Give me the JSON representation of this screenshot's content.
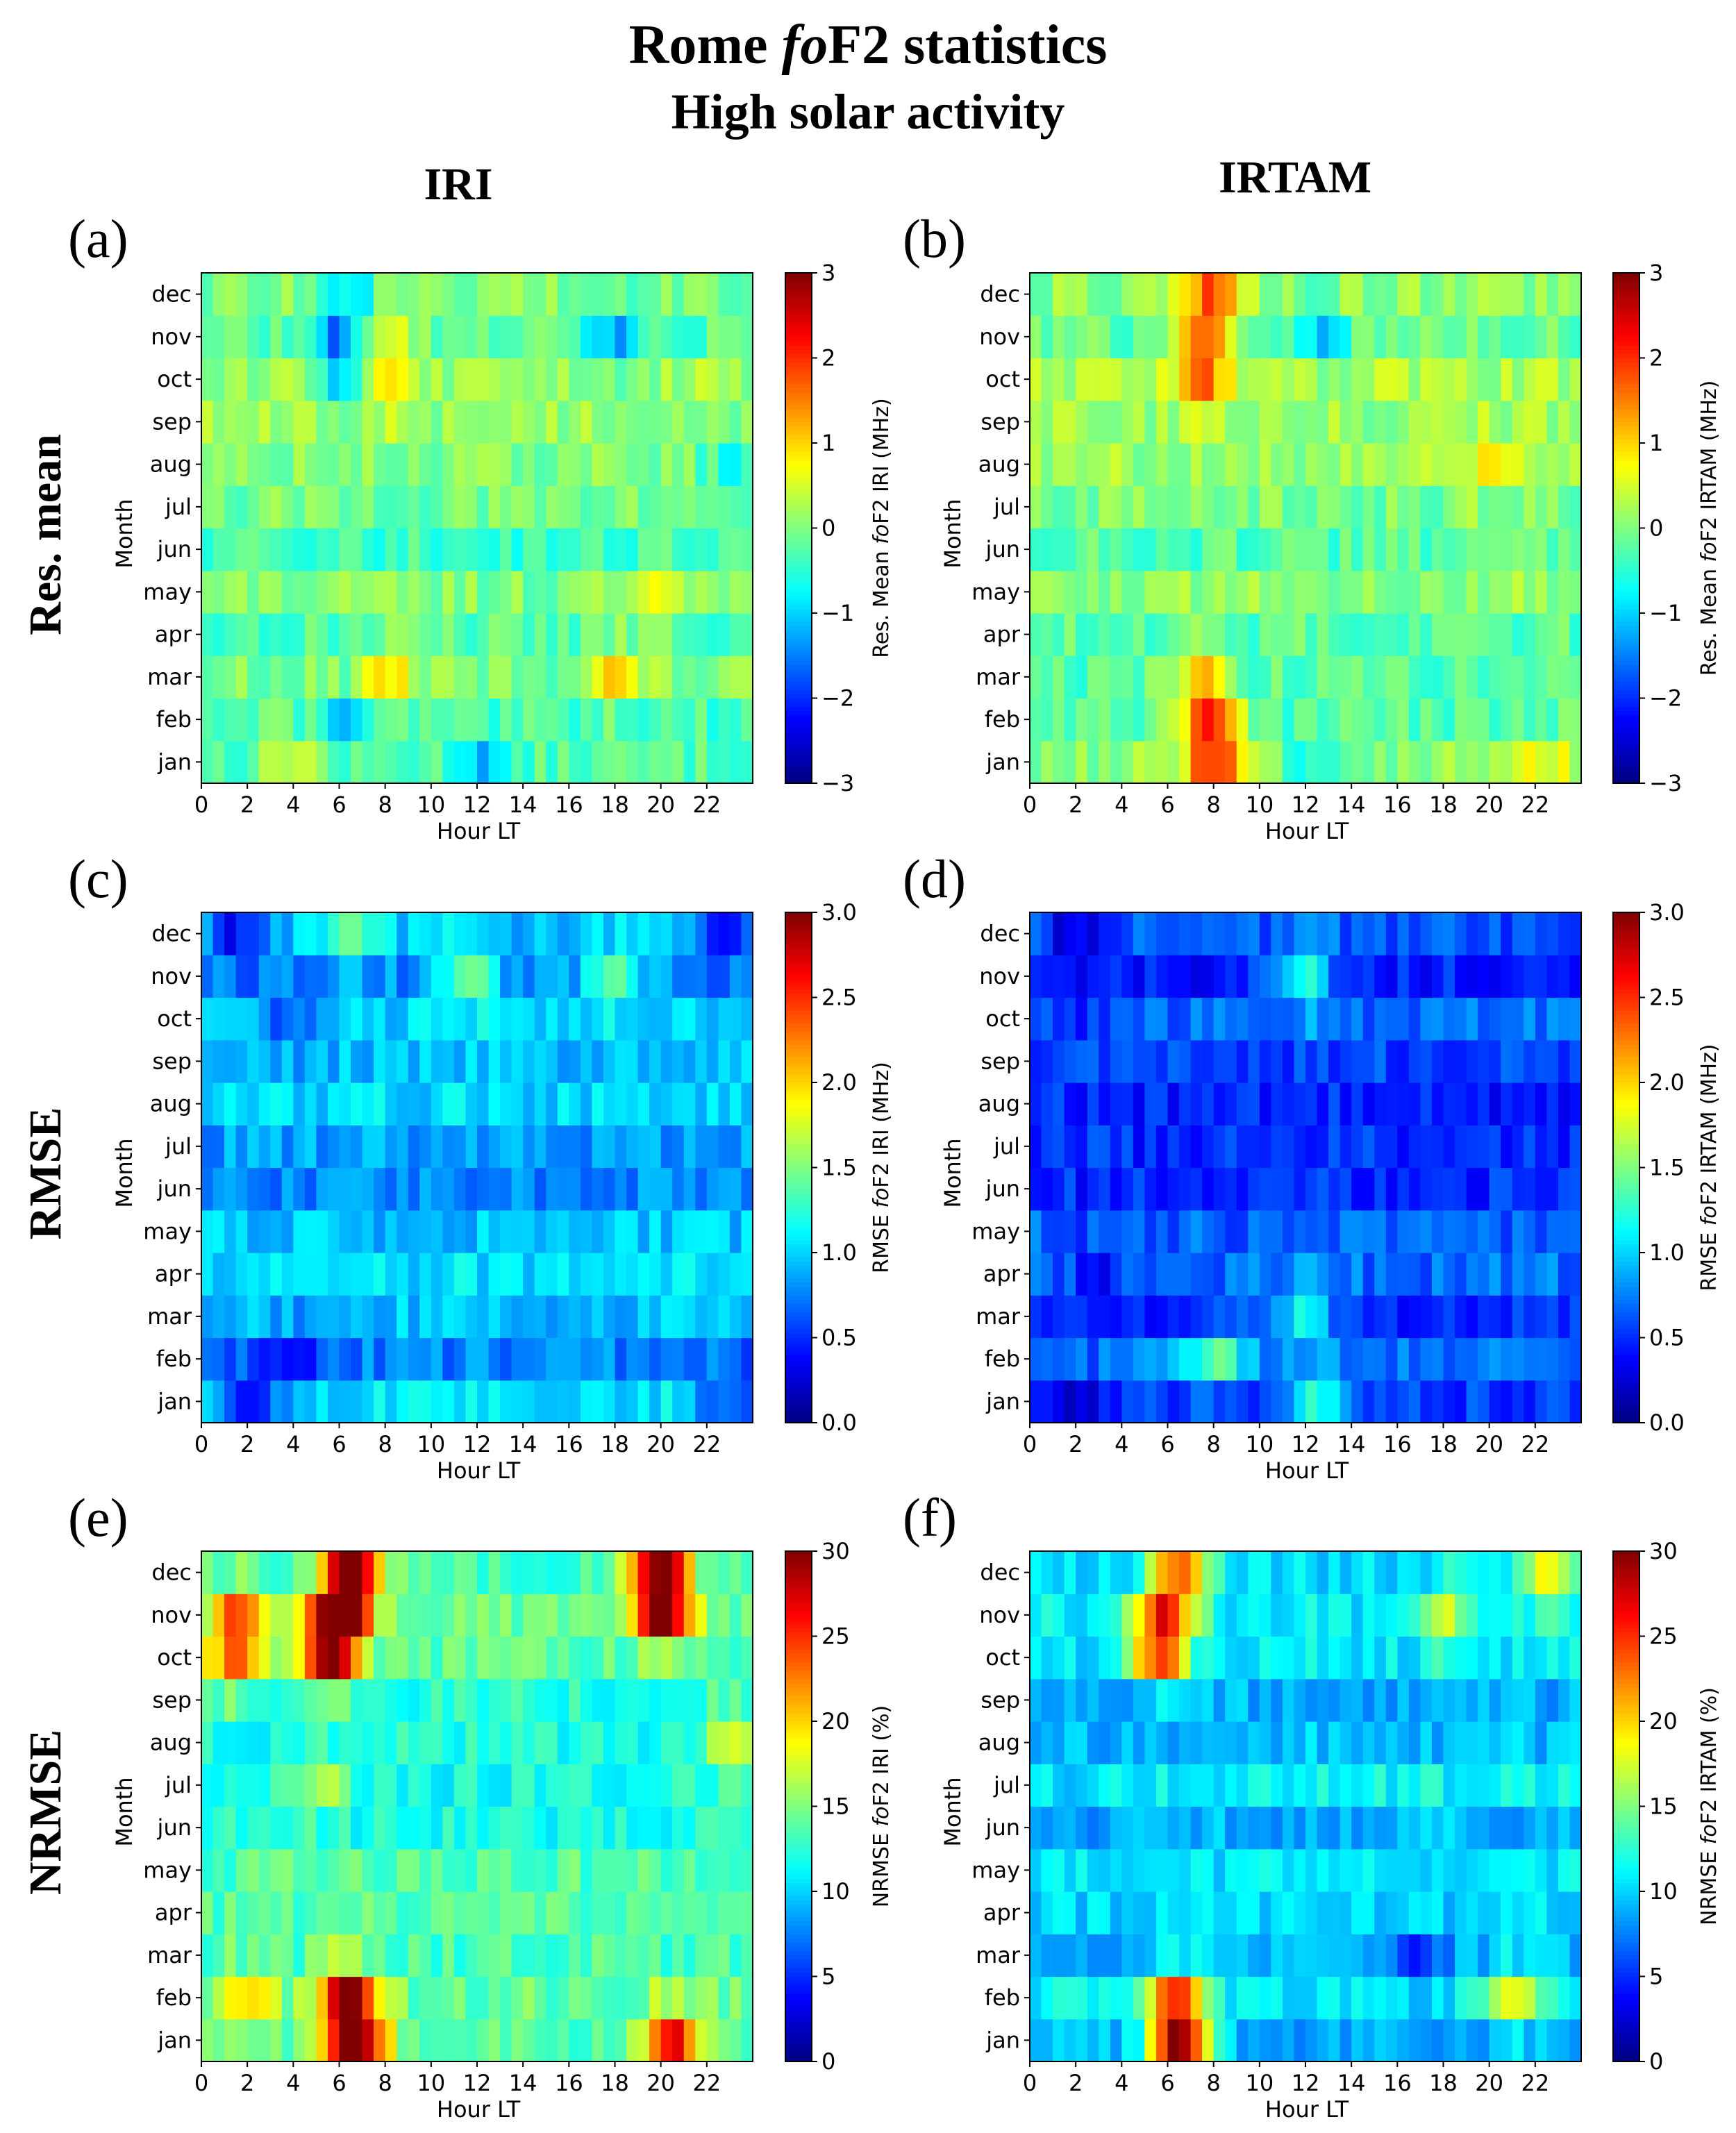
{
  "title": {
    "line1_prefix": "Rome ",
    "line1_italic": "fo",
    "line1_suffix": "F2 statistics",
    "line2": "High solar activity"
  },
  "column_headers": [
    "IRI",
    "IRTAM"
  ],
  "row_headers": [
    "Res. mean",
    "RMSE",
    "NRMSE"
  ],
  "chart_data": [
    {
      "type": "heatmap",
      "panel": "(a)",
      "model": "IRI",
      "metric": "Res. mean",
      "xlabel": "Hour LT",
      "ylabel": "Month",
      "x_ticks": [
        "0",
        "2",
        "4",
        "6",
        "8",
        "10",
        "12",
        "14",
        "16",
        "18",
        "20",
        "22"
      ],
      "y_categories": [
        "jan",
        "feb",
        "mar",
        "apr",
        "may",
        "jun",
        "jul",
        "aug",
        "sep",
        "oct",
        "nov",
        "dec"
      ],
      "xlim": [
        0,
        24
      ],
      "colorbar_range": [
        -3,
        3
      ],
      "colorbar_ticks": [
        "−3",
        "−2",
        "−1",
        "0",
        "1",
        "2",
        "3"
      ],
      "colorbar_label_prefix": "Res. Mean ",
      "colorbar_label_italic": "fo",
      "colorbar_label_suffix": "F2 IRI (MHz)",
      "hotspots": [
        {
          "month": "mar",
          "hour": 8,
          "value": 0.9
        },
        {
          "month": "mar",
          "hour": 18,
          "value": 0.9
        },
        {
          "month": "may",
          "hour": 20,
          "value": 0.8
        },
        {
          "month": "nov",
          "hour": 8,
          "value": 0.8
        },
        {
          "month": "oct",
          "hour": 8,
          "value": 0.7
        },
        {
          "month": "jan",
          "hour": 4,
          "value": 0.7
        },
        {
          "month": "nov",
          "hour": 6,
          "value": -1.2
        },
        {
          "month": "oct",
          "hour": 6,
          "value": -1.1
        },
        {
          "month": "nov",
          "hour": 18,
          "value": -1.1
        },
        {
          "month": "dec",
          "hour": 6.5,
          "value": -0.9
        },
        {
          "month": "jan",
          "hour": 12.5,
          "value": -0.9
        },
        {
          "month": "feb",
          "hour": 6.5,
          "value": -0.8
        },
        {
          "month": "aug",
          "hour": 23,
          "value": -0.6
        }
      ],
      "base": -0.1
    },
    {
      "type": "heatmap",
      "panel": "(b)",
      "model": "IRTAM",
      "metric": "Res. mean",
      "xlabel": "Hour LT",
      "ylabel": "Month",
      "x_ticks": [
        "0",
        "2",
        "4",
        "6",
        "8",
        "10",
        "12",
        "14",
        "16",
        "18",
        "20",
        "22"
      ],
      "y_categories": [
        "jan",
        "feb",
        "mar",
        "apr",
        "may",
        "jun",
        "jul",
        "aug",
        "sep",
        "oct",
        "nov",
        "dec"
      ],
      "xlim": [
        0,
        24
      ],
      "colorbar_range": [
        -3,
        3
      ],
      "colorbar_ticks": [
        "−3",
        "−2",
        "−1",
        "0",
        "1",
        "2",
        "3"
      ],
      "colorbar_label_prefix": "Res. Mean ",
      "colorbar_label_italic": "fo",
      "colorbar_label_suffix": "F2 IRTAM (MHz)",
      "hotspots": [
        {
          "month": "dec",
          "hour": 8,
          "value": 1.4
        },
        {
          "month": "nov",
          "hour": 7.5,
          "value": 1.6
        },
        {
          "month": "jan",
          "hour": 8,
          "value": 1.6
        },
        {
          "month": "feb",
          "hour": 7.8,
          "value": 1.7
        },
        {
          "month": "oct",
          "hour": 7.5,
          "value": 1.0
        },
        {
          "month": "mar",
          "hour": 7.3,
          "value": 1.0
        },
        {
          "month": "aug",
          "hour": 20,
          "value": 0.7
        },
        {
          "month": "jan",
          "hour": 22.5,
          "value": 0.6
        },
        {
          "month": "nov",
          "hour": 12.5,
          "value": -0.8
        },
        {
          "month": "jan",
          "hour": 12,
          "value": -0.6
        }
      ],
      "base": 0.0
    },
    {
      "type": "heatmap",
      "panel": "(c)",
      "model": "IRI",
      "metric": "RMSE",
      "xlabel": "Hour LT",
      "ylabel": "Month",
      "x_ticks": [
        "0",
        "2",
        "4",
        "6",
        "8",
        "10",
        "12",
        "14",
        "16",
        "18",
        "20",
        "22"
      ],
      "y_categories": [
        "jan",
        "feb",
        "mar",
        "apr",
        "may",
        "jun",
        "jul",
        "aug",
        "sep",
        "oct",
        "nov",
        "dec"
      ],
      "xlim": [
        0,
        24
      ],
      "colorbar_range": [
        0,
        3
      ],
      "colorbar_ticks": [
        "0.0",
        "0.5",
        "1.0",
        "1.5",
        "2.0",
        "2.5",
        "3.0"
      ],
      "colorbar_label_prefix": "RMSE ",
      "colorbar_label_italic": "fo",
      "colorbar_label_suffix": "F2 IRI (MHz)",
      "hotspots": [
        {
          "month": "nov",
          "hour": 11.5,
          "value": 1.6
        },
        {
          "month": "nov",
          "hour": 18,
          "value": 1.5
        },
        {
          "month": "dec",
          "hour": 6.5,
          "value": 1.4
        },
        {
          "month": "jan",
          "hour": 2,
          "value": 0.3
        },
        {
          "month": "dec",
          "hour": 1.5,
          "value": 0.4
        },
        {
          "month": "feb",
          "hour": 4,
          "value": 0.4
        },
        {
          "month": "dec",
          "hour": 23,
          "value": 0.4
        },
        {
          "month": "jan",
          "hour": 23,
          "value": 0.4
        },
        {
          "month": "oct",
          "hour": 4,
          "value": 0.5
        }
      ],
      "base": 0.9
    },
    {
      "type": "heatmap",
      "panel": "(d)",
      "model": "IRTAM",
      "metric": "RMSE",
      "xlabel": "Hour LT",
      "ylabel": "Month",
      "x_ticks": [
        "0",
        "2",
        "4",
        "6",
        "8",
        "10",
        "12",
        "14",
        "16",
        "18",
        "20",
        "22"
      ],
      "y_categories": [
        "jan",
        "feb",
        "mar",
        "apr",
        "may",
        "jun",
        "jul",
        "aug",
        "sep",
        "oct",
        "nov",
        "dec"
      ],
      "xlim": [
        0,
        24
      ],
      "colorbar_range": [
        0,
        3
      ],
      "colorbar_ticks": [
        "0.0",
        "0.5",
        "1.0",
        "1.5",
        "2.0",
        "2.5",
        "3.0"
      ],
      "colorbar_label_prefix": "RMSE ",
      "colorbar_label_italic": "fo",
      "colorbar_label_suffix": "F2 IRTAM (MHz)",
      "hotspots": [
        {
          "month": "nov",
          "hour": 12,
          "value": 1.3
        },
        {
          "month": "mar",
          "hour": 12,
          "value": 1.2
        },
        {
          "month": "feb",
          "hour": 8,
          "value": 1.3
        },
        {
          "month": "jan",
          "hour": 12.5,
          "value": 1.2
        },
        {
          "month": "dec",
          "hour": 2,
          "value": 0.2
        },
        {
          "month": "jan",
          "hour": 2,
          "value": 0.2
        },
        {
          "month": "apr",
          "hour": 3,
          "value": 0.3
        },
        {
          "month": "oct",
          "hour": 2,
          "value": 0.3
        }
      ],
      "base": 0.6
    },
    {
      "type": "heatmap",
      "panel": "(e)",
      "model": "IRI",
      "metric": "NRMSE",
      "xlabel": "Hour LT",
      "ylabel": "Month",
      "x_ticks": [
        "0",
        "2",
        "4",
        "6",
        "8",
        "10",
        "12",
        "14",
        "16",
        "18",
        "20",
        "22"
      ],
      "y_categories": [
        "jan",
        "feb",
        "mar",
        "apr",
        "may",
        "jun",
        "jul",
        "aug",
        "sep",
        "oct",
        "nov",
        "dec"
      ],
      "xlim": [
        0,
        24
      ],
      "colorbar_range": [
        0,
        30
      ],
      "colorbar_ticks": [
        "0",
        "5",
        "10",
        "15",
        "20",
        "25",
        "30"
      ],
      "colorbar_label_prefix": "NRMSE ",
      "colorbar_label_italic": "fo",
      "colorbar_label_suffix": "F2 IRI (%)",
      "hotspots": [
        {
          "month": "dec",
          "hour": 6.5,
          "value": 29
        },
        {
          "month": "nov",
          "hour": 6,
          "value": 29
        },
        {
          "month": "oct",
          "hour": 5.5,
          "value": 28
        },
        {
          "month": "jan",
          "hour": 6.8,
          "value": 29
        },
        {
          "month": "feb",
          "hour": 6.3,
          "value": 27
        },
        {
          "month": "dec",
          "hour": 20,
          "value": 29
        },
        {
          "month": "nov",
          "hour": 20,
          "value": 27
        },
        {
          "month": "jan",
          "hour": 20.5,
          "value": 26
        },
        {
          "month": "oct",
          "hour": 1.5,
          "value": 22
        },
        {
          "month": "nov",
          "hour": 1.5,
          "value": 21
        },
        {
          "month": "aug",
          "hour": 23,
          "value": 19
        },
        {
          "month": "feb",
          "hour": 2,
          "value": 19
        },
        {
          "month": "jul",
          "hour": 5,
          "value": 18
        }
      ],
      "base": 13
    },
    {
      "type": "heatmap",
      "panel": "(f)",
      "model": "IRTAM",
      "metric": "NRMSE",
      "xlabel": "Hour LT",
      "ylabel": "Month",
      "x_ticks": [
        "0",
        "2",
        "4",
        "6",
        "8",
        "10",
        "12",
        "14",
        "16",
        "18",
        "20",
        "22"
      ],
      "y_categories": [
        "jan",
        "feb",
        "mar",
        "apr",
        "may",
        "jun",
        "jul",
        "aug",
        "sep",
        "oct",
        "nov",
        "dec"
      ],
      "xlim": [
        0,
        24
      ],
      "colorbar_range": [
        0,
        30
      ],
      "colorbar_ticks": [
        "0",
        "5",
        "10",
        "15",
        "20",
        "25",
        "30"
      ],
      "colorbar_label_prefix": "NRMSE ",
      "colorbar_label_italic": "fo",
      "colorbar_label_suffix": "F2 IRTAM (%)",
      "hotspots": [
        {
          "month": "jan",
          "hour": 6.5,
          "value": 29
        },
        {
          "month": "feb",
          "hour": 6.3,
          "value": 22
        },
        {
          "month": "dec",
          "hour": 6.5,
          "value": 22
        },
        {
          "month": "nov",
          "hour": 5.8,
          "value": 22
        },
        {
          "month": "oct",
          "hour": 5.6,
          "value": 21
        },
        {
          "month": "dec",
          "hour": 22.5,
          "value": 18
        },
        {
          "month": "nov",
          "hour": 18,
          "value": 17
        },
        {
          "month": "feb",
          "hour": 21,
          "value": 17
        },
        {
          "month": "jul",
          "hour": 2,
          "value": 7
        },
        {
          "month": "mar",
          "hour": 17,
          "value": 6
        }
      ],
      "base": 10
    }
  ]
}
